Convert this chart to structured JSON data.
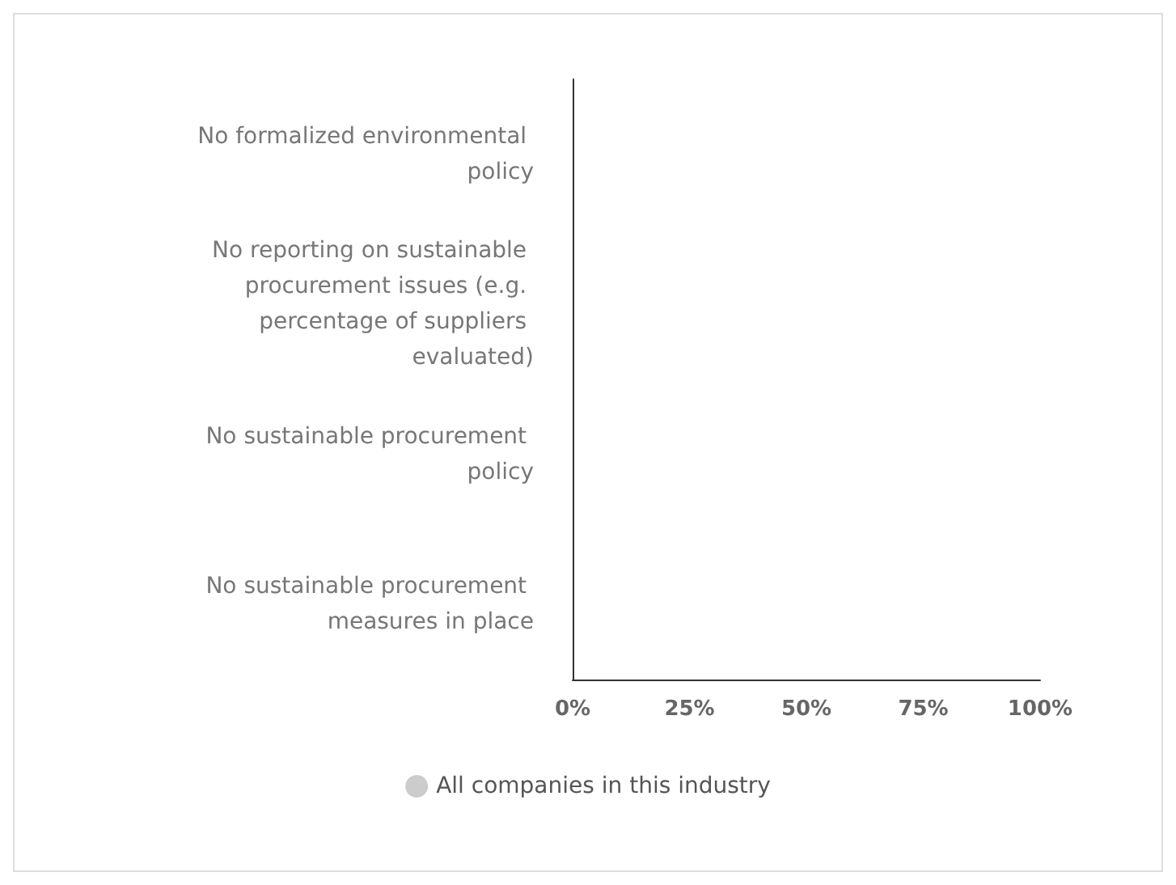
{
  "chart_data": {
    "type": "bar",
    "orientation": "horizontal",
    "categories": [
      "No formalized environmental policy",
      "No reporting on sustainable procurement issues (e.g. percentage of suppliers evaluated)",
      "No sustainable procurement policy",
      "No sustainable procurement measures in place"
    ],
    "series": [
      {
        "name": "All companies in this industry",
        "color": "#cccccc",
        "values": [
          0,
          0,
          0,
          0
        ]
      }
    ],
    "xlim": [
      0,
      100
    ],
    "xticks": [
      {
        "value": 0,
        "label": "0%"
      },
      {
        "value": 25,
        "label": "25%"
      },
      {
        "value": 50,
        "label": "50%"
      },
      {
        "value": 75,
        "label": "75%"
      },
      {
        "value": 100,
        "label": "100%"
      }
    ],
    "grid": false,
    "legend": "bottom"
  }
}
